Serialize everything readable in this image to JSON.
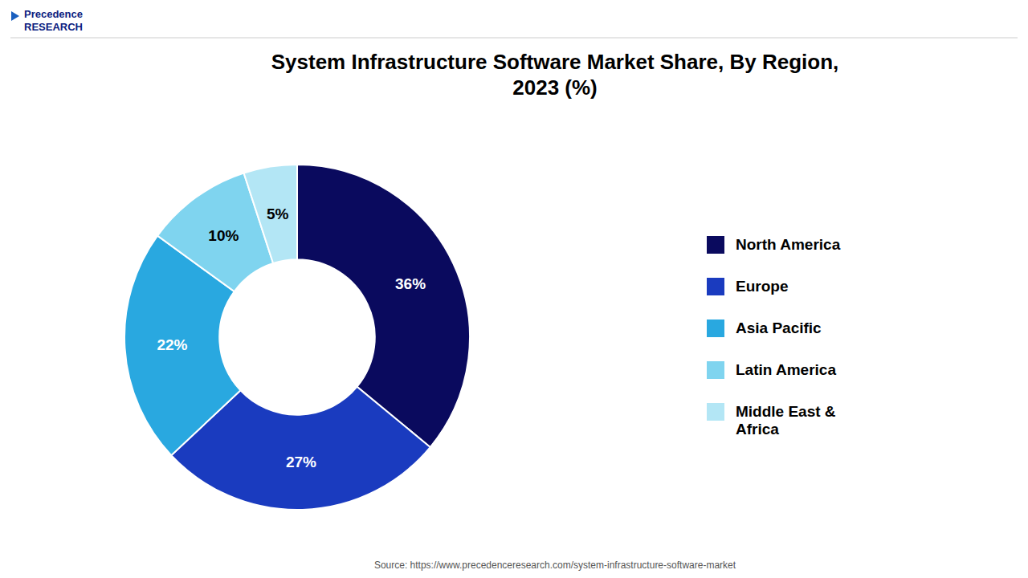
{
  "chart_data": {
    "type": "pie",
    "title": "System Infrastructure Software Market Share, By Region,\n2023 (%)",
    "categories": [
      "North America",
      "Europe",
      "Asia Pacific",
      "Latin America",
      "Middle East &\nAfrica"
    ],
    "values": [
      36,
      27,
      22,
      10,
      5
    ],
    "value_labels": [
      "36%",
      "27%",
      "22%",
      "10%",
      "5%"
    ],
    "colors": [
      "#0a0a5e",
      "#1a3bbf",
      "#29a8e0",
      "#7fd4ef",
      "#b3e6f5"
    ],
    "data_labels": true,
    "legend": "right",
    "source": "Source: https://www.precedenceresearch.com/system-infrastructure-software-market",
    "brand": "Precedence\nRESEARCH"
  }
}
